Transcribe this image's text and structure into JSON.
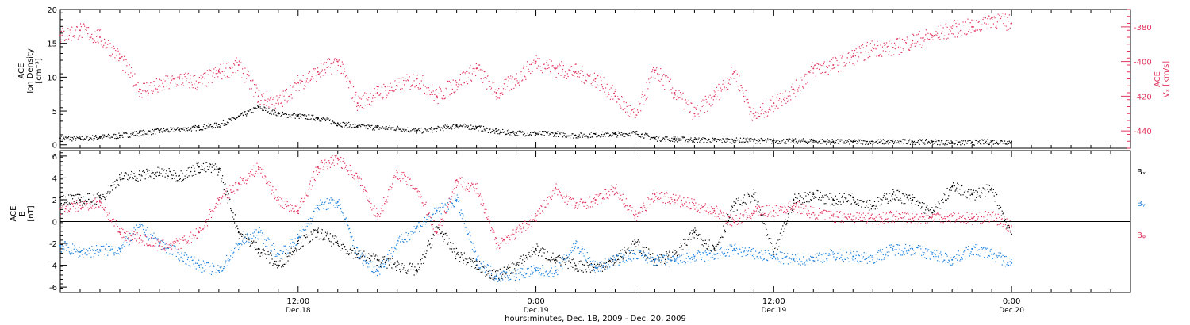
{
  "figure": {
    "xlabel": "hours:minutes, Dec. 18, 2009 - Dec. 20, 2009",
    "time_ticks": [
      {
        "hour": 12,
        "label": "12:00",
        "sublabel": "Dec.18"
      },
      {
        "hour": 24,
        "label": "0:00",
        "sublabel": "Dec.19"
      },
      {
        "hour": 36,
        "label": "12:00",
        "sublabel": "Dec.19"
      },
      {
        "hour": 48,
        "label": "0:00",
        "sublabel": "Dec.20"
      }
    ]
  },
  "chart_data": [
    {
      "type": "scatter",
      "panel": "top",
      "xlim_hours": [
        0,
        54
      ],
      "left_axis": {
        "label_lines": [
          "ACE",
          "Ion Density",
          "[cm⁻³]"
        ],
        "ylim": [
          -0.5,
          20
        ],
        "ticks": [
          0,
          5,
          10,
          15,
          20
        ]
      },
      "right_axis": {
        "label_lines": [
          "ACE",
          "Vₓ [km/s]"
        ],
        "ylim": [
          -450,
          -370
        ],
        "ticks": [
          -380,
          -400,
          -420,
          -440
        ],
        "tick_labels": [
          "-380",
          "-400",
          "-420",
          "-440"
        ],
        "color": "#e0335e"
      },
      "series": [
        {
          "key": "density",
          "color": "#000000",
          "axis": "left",
          "x": [
            0,
            1,
            2,
            3,
            4,
            5,
            6,
            7,
            8,
            9,
            10,
            11,
            12,
            13,
            14,
            15,
            16,
            17,
            18,
            19,
            20,
            21,
            22,
            23,
            24,
            25,
            26,
            27,
            28,
            29,
            30,
            31,
            32,
            33,
            34,
            35,
            36,
            37,
            38,
            39,
            40,
            41,
            42,
            43,
            44,
            45,
            46,
            47,
            48
          ],
          "y": [
            1.0,
            1.0,
            1.2,
            1.4,
            1.8,
            2.1,
            2.3,
            2.6,
            3.0,
            4.2,
            5.6,
            4.6,
            4.3,
            4.0,
            3.2,
            2.8,
            2.6,
            2.5,
            2.1,
            2.4,
            2.9,
            2.6,
            2.0,
            1.8,
            1.7,
            1.7,
            1.4,
            1.6,
            1.6,
            1.8,
            1.0,
            0.9,
            0.8,
            0.7,
            0.7,
            0.7,
            0.6,
            0.6,
            0.6,
            0.5,
            0.5,
            0.5,
            0.5,
            0.5,
            0.5,
            0.4,
            0.4,
            0.5,
            0.5
          ]
        },
        {
          "key": "vx",
          "color": "#e0335e",
          "axis": "right",
          "x": [
            0,
            1,
            2,
            3,
            4,
            5,
            6,
            7,
            8,
            9,
            10,
            11,
            12,
            13,
            14,
            15,
            16,
            17,
            18,
            19,
            20,
            21,
            22,
            23,
            24,
            25,
            26,
            27,
            28,
            29,
            30,
            31,
            32,
            33,
            34,
            35,
            36,
            37,
            38,
            39,
            40,
            41,
            42,
            43,
            44,
            45,
            46,
            47,
            48
          ],
          "y": [
            -385,
            -382,
            -386,
            -398,
            -416,
            -414,
            -410,
            -412,
            -406,
            -402,
            -420,
            -424,
            -412,
            -406,
            -400,
            -424,
            -418,
            -414,
            -410,
            -420,
            -412,
            -404,
            -418,
            -410,
            -400,
            -404,
            -406,
            -410,
            -420,
            -432,
            -405,
            -418,
            -430,
            -420,
            -406,
            -432,
            -424,
            -416,
            -404,
            -402,
            -397,
            -392,
            -392,
            -388,
            -385,
            -381,
            -380,
            -375,
            -378
          ]
        }
      ]
    },
    {
      "type": "scatter",
      "panel": "bottom",
      "xlim_hours": [
        0,
        54
      ],
      "left_axis": {
        "label_lines": [
          "ACE",
          "B",
          "[nT]"
        ],
        "ylim": [
          -6.5,
          6.5
        ],
        "ticks": [
          -6,
          -4,
          -2,
          0,
          2,
          4,
          6
        ]
      },
      "zero_line": 0,
      "series": [
        {
          "name": "Bₓ",
          "color": "#000000",
          "x": [
            0,
            1,
            2,
            3,
            4,
            5,
            6,
            7,
            8,
            9,
            10,
            11,
            12,
            13,
            14,
            15,
            16,
            17,
            18,
            19,
            20,
            21,
            22,
            23,
            24,
            25,
            26,
            27,
            28,
            29,
            30,
            31,
            32,
            33,
            34,
            35,
            36,
            37,
            38,
            39,
            40,
            41,
            42,
            43,
            44,
            45,
            46,
            47,
            48
          ],
          "y": [
            2.2,
            2.0,
            2.2,
            4.0,
            4.3,
            4.5,
            4.2,
            5.0,
            4.8,
            -1.0,
            -2.5,
            -4.0,
            -2.0,
            -1.0,
            -2.0,
            -3.0,
            -3.5,
            -4.0,
            -4.5,
            -0.5,
            -3.0,
            -4.0,
            -5.0,
            -4.0,
            -2.5,
            -3.5,
            -4.0,
            -4.2,
            -3.5,
            -2.0,
            -3.5,
            -3.0,
            -1.0,
            -2.5,
            1.5,
            2.5,
            -3.0,
            2.0,
            2.5,
            2.0,
            2.2,
            1.5,
            2.5,
            2.0,
            0.8,
            3.2,
            2.5,
            3.0,
            -1.2
          ]
        },
        {
          "name": "Bᵧ",
          "color": "#1a7fdc",
          "x": [
            0,
            1,
            2,
            3,
            4,
            5,
            6,
            7,
            8,
            9,
            10,
            11,
            12,
            13,
            14,
            15,
            16,
            17,
            18,
            19,
            20,
            21,
            22,
            23,
            24,
            25,
            26,
            27,
            28,
            29,
            30,
            31,
            32,
            33,
            34,
            35,
            36,
            37,
            38,
            39,
            40,
            41,
            42,
            43,
            44,
            45,
            46,
            47,
            48
          ],
          "y": [
            -2.2,
            -2.8,
            -2.6,
            -2.5,
            -0.5,
            -2.0,
            -3.0,
            -4.0,
            -4.5,
            -2.0,
            -1.0,
            -3.0,
            -1.5,
            1.5,
            1.8,
            -3.0,
            -4.5,
            -2.0,
            -0.5,
            1.0,
            2.0,
            -3.5,
            -5.0,
            -4.8,
            -4.5,
            -4.5,
            -2.0,
            -4.2,
            -3.5,
            -3.0,
            -3.5,
            -3.6,
            -3.2,
            -3.0,
            -2.5,
            -3.0,
            -3.2,
            -3.5,
            -3.3,
            -3.0,
            -3.2,
            -3.3,
            -2.5,
            -2.5,
            -3.0,
            -3.5,
            -2.5,
            -3.0,
            -3.8
          ]
        },
        {
          "name": "Bᵩ",
          "color": "#e0335e",
          "x": [
            0,
            1,
            2,
            3,
            4,
            5,
            6,
            7,
            8,
            9,
            10,
            11,
            12,
            13,
            14,
            15,
            16,
            17,
            18,
            19,
            20,
            21,
            22,
            23,
            24,
            25,
            26,
            27,
            28,
            29,
            30,
            31,
            32,
            33,
            34,
            35,
            36,
            37,
            38,
            39,
            40,
            41,
            42,
            43,
            44,
            45,
            46,
            47,
            48
          ],
          "y": [
            1.2,
            1.5,
            1.8,
            -1.0,
            -1.5,
            -2.2,
            -2.0,
            -1.0,
            2.0,
            3.5,
            5.0,
            2.0,
            1.0,
            5.0,
            5.8,
            4.0,
            0.5,
            4.5,
            3.0,
            -1.0,
            3.8,
            3.0,
            -2.0,
            -1.0,
            0.5,
            3.0,
            1.5,
            2.0,
            3.0,
            0.5,
            2.5,
            2.0,
            1.5,
            1.0,
            0.0,
            1.0,
            1.0,
            1.5,
            0.8,
            0.5,
            0.5,
            0.3,
            0.5,
            0.3,
            0.5,
            0.5,
            0.3,
            0.5,
            -0.5
          ]
        }
      ]
    }
  ]
}
